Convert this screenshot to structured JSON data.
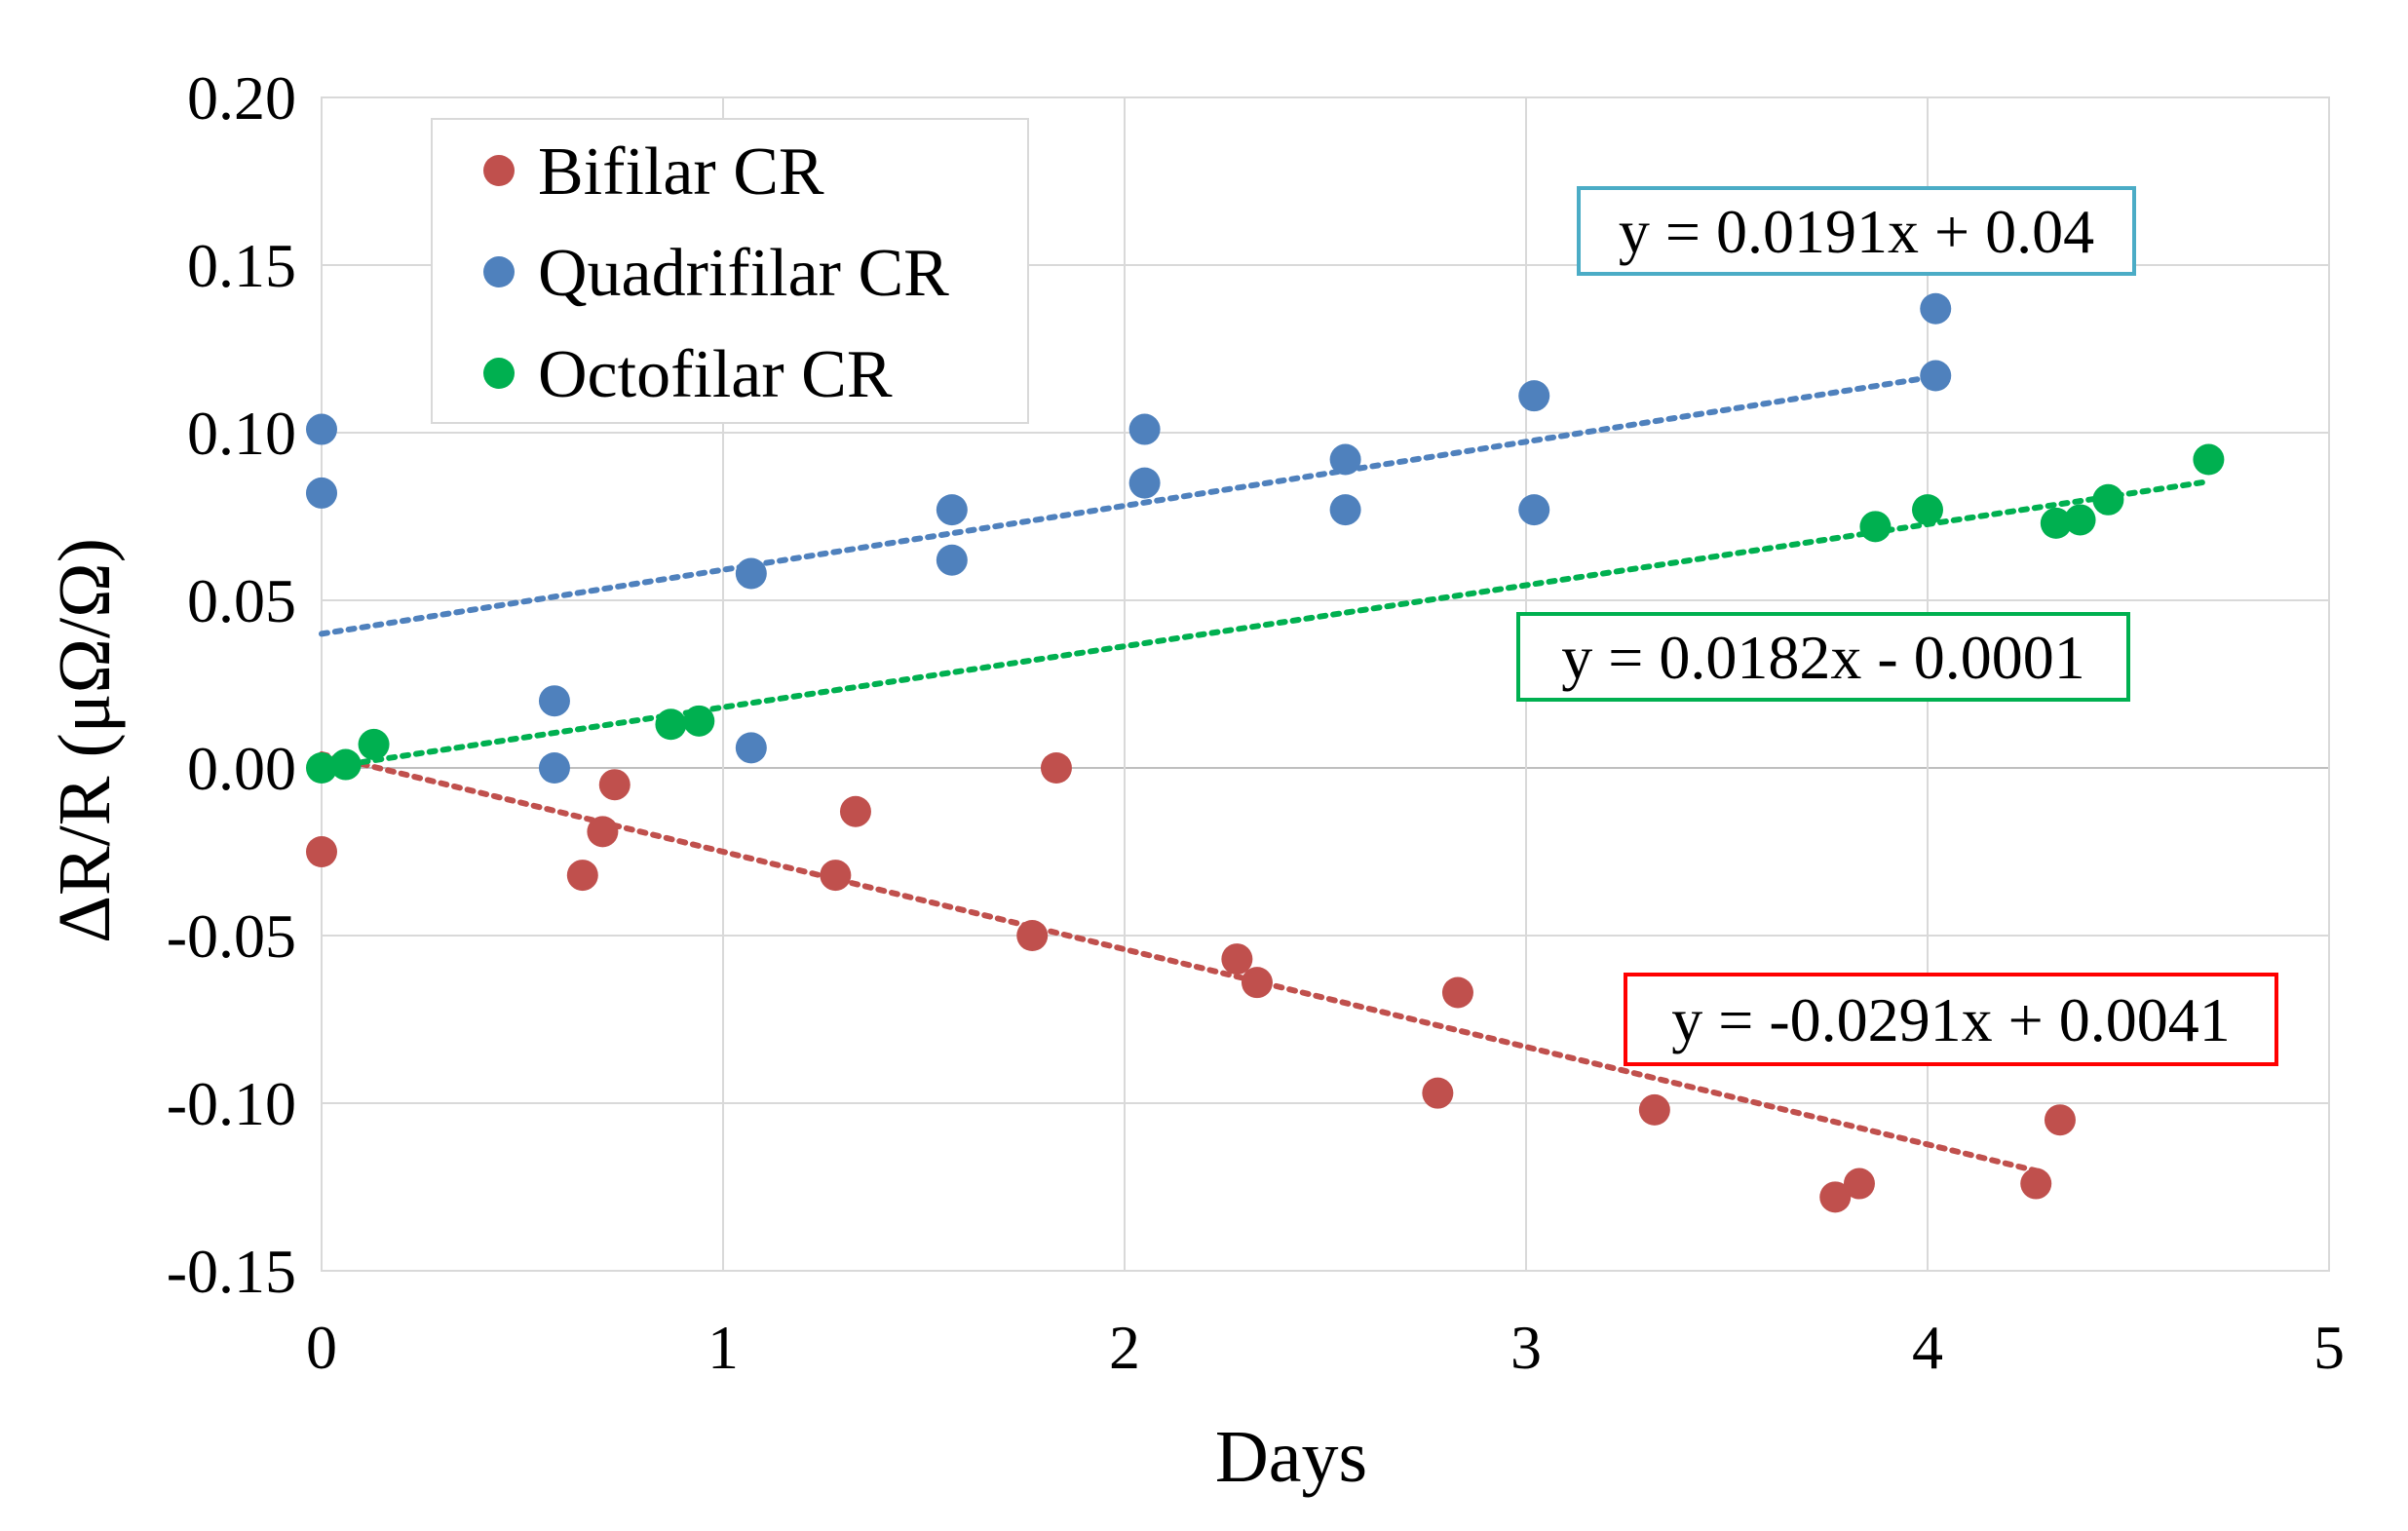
{
  "chart_data": {
    "type": "scatter",
    "title": "",
    "xlabel": "Days",
    "ylabel": "ΔR/R (μΩ/Ω)",
    "xlim": [
      0,
      5
    ],
    "ylim": [
      -0.15,
      0.2
    ],
    "grid": true,
    "legend_position": "top-left",
    "x_ticks": [
      {
        "value": 0,
        "label": "0"
      },
      {
        "value": 1,
        "label": "1"
      },
      {
        "value": 2,
        "label": "2"
      },
      {
        "value": 3,
        "label": "3"
      },
      {
        "value": 4,
        "label": "4"
      },
      {
        "value": 5,
        "label": "5"
      }
    ],
    "y_ticks": [
      {
        "value": 0.2,
        "label": "0.20"
      },
      {
        "value": 0.15,
        "label": "0.15"
      },
      {
        "value": 0.1,
        "label": "0.10"
      },
      {
        "value": 0.05,
        "label": "0.05"
      },
      {
        "value": 0,
        "label": "0.00"
      },
      {
        "value": -0.05,
        "label": "-0.05"
      },
      {
        "value": -0.1,
        "label": "-0.10"
      },
      {
        "value": -0.15,
        "label": "-0.15"
      }
    ],
    "series": [
      {
        "name": "Bifilar CR",
        "color": "#c0504d",
        "points": [
          [
            0.0,
            -0.025
          ],
          [
            0.65,
            -0.032
          ],
          [
            0.7,
            -0.019
          ],
          [
            0.73,
            -0.005
          ],
          [
            1.28,
            -0.032
          ],
          [
            1.33,
            -0.013
          ],
          [
            1.77,
            -0.05
          ],
          [
            1.83,
            0.0
          ],
          [
            2.28,
            -0.057
          ],
          [
            2.33,
            -0.064
          ],
          [
            2.78,
            -0.097
          ],
          [
            2.83,
            -0.067
          ],
          [
            3.32,
            -0.102
          ],
          [
            3.77,
            -0.128
          ],
          [
            3.83,
            -0.124
          ],
          [
            4.27,
            -0.124
          ],
          [
            4.33,
            -0.105
          ]
        ],
        "trendline": {
          "slope": -0.0291,
          "intercept": 0.0041,
          "x_start": 0.0,
          "x_end": 4.27,
          "color": "#c0504d"
        },
        "equation": {
          "text": "y = -0.0291x + 0.0041",
          "border_color": "#ff0000"
        }
      },
      {
        "name": "Quadrifilar CR",
        "color": "#4f81bd",
        "points": [
          [
            0.0,
            0.101
          ],
          [
            0.0,
            0.082
          ],
          [
            0.58,
            0.02
          ],
          [
            0.58,
            0.0
          ],
          [
            1.07,
            0.058
          ],
          [
            1.07,
            0.006
          ],
          [
            1.57,
            0.077
          ],
          [
            1.57,
            0.062
          ],
          [
            2.05,
            0.101
          ],
          [
            2.05,
            0.085
          ],
          [
            2.55,
            0.092
          ],
          [
            2.55,
            0.077
          ],
          [
            3.02,
            0.111
          ],
          [
            3.02,
            0.077
          ],
          [
            4.02,
            0.137
          ],
          [
            4.02,
            0.117
          ]
        ],
        "trendline": {
          "slope": 0.0191,
          "intercept": 0.04,
          "x_start": 0.0,
          "x_end": 4.02,
          "color": "#4f81bd"
        },
        "equation": {
          "text": "y = 0.0191x + 0.04",
          "border_color": "#4bacc6"
        }
      },
      {
        "name": "Octofilar CR",
        "color": "#00b050",
        "points": [
          [
            0.0,
            0.0
          ],
          [
            0.06,
            0.001
          ],
          [
            0.13,
            0.007
          ],
          [
            0.87,
            0.013
          ],
          [
            0.94,
            0.014
          ],
          [
            3.87,
            0.072
          ],
          [
            4.0,
            0.077
          ],
          [
            4.32,
            0.073
          ],
          [
            4.38,
            0.074
          ],
          [
            4.45,
            0.08
          ],
          [
            4.7,
            0.092
          ]
        ],
        "trendline": {
          "slope": 0.0182,
          "intercept": -0.0001,
          "x_start": 0.0,
          "x_end": 4.7,
          "color": "#00b050"
        },
        "equation": {
          "text": "y = 0.0182x - 0.0001",
          "border_color": "#00b050"
        }
      }
    ]
  }
}
